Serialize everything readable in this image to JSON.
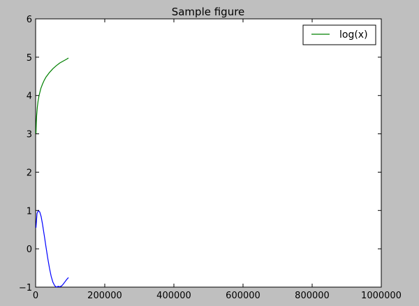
{
  "chart_data": {
    "type": "line",
    "title": "Sample figure",
    "xlabel": "",
    "ylabel": "",
    "xlim": [
      0,
      1000000
    ],
    "ylim": [
      -1,
      6
    ],
    "xticks": [
      0,
      200000,
      400000,
      600000,
      800000,
      1000000
    ],
    "yticks": [
      -1,
      0,
      1,
      2,
      3,
      4,
      5,
      6
    ],
    "grid": false,
    "legend_position": "top-right",
    "series": [
      {
        "name": "",
        "color": "#0000ff",
        "x": [
          1000,
          4000,
          8000,
          12000,
          16000,
          20000,
          25000,
          30000,
          35000,
          40000,
          45000,
          50000,
          55000,
          60000,
          65000,
          70000,
          75000,
          80000,
          85000,
          90000,
          95000
        ],
        "y": [
          0.55,
          0.92,
          1.0,
          0.96,
          0.84,
          0.64,
          0.35,
          0.05,
          -0.24,
          -0.5,
          -0.72,
          -0.87,
          -0.96,
          -1.0,
          -0.98,
          -0.99,
          -0.97,
          -0.92,
          -0.86,
          -0.8,
          -0.75
        ]
      },
      {
        "name": "log(x)",
        "color": "#008000",
        "x": [
          1000,
          2000,
          3000,
          5000,
          7000,
          10000,
          15000,
          20000,
          25000,
          30000,
          40000,
          50000,
          60000,
          70000,
          80000,
          90000,
          95000
        ],
        "y": [
          3.0,
          3.3,
          3.48,
          3.7,
          3.85,
          4.0,
          4.18,
          4.3,
          4.4,
          4.48,
          4.6,
          4.7,
          4.78,
          4.85,
          4.9,
          4.95,
          4.98
        ]
      }
    ]
  }
}
